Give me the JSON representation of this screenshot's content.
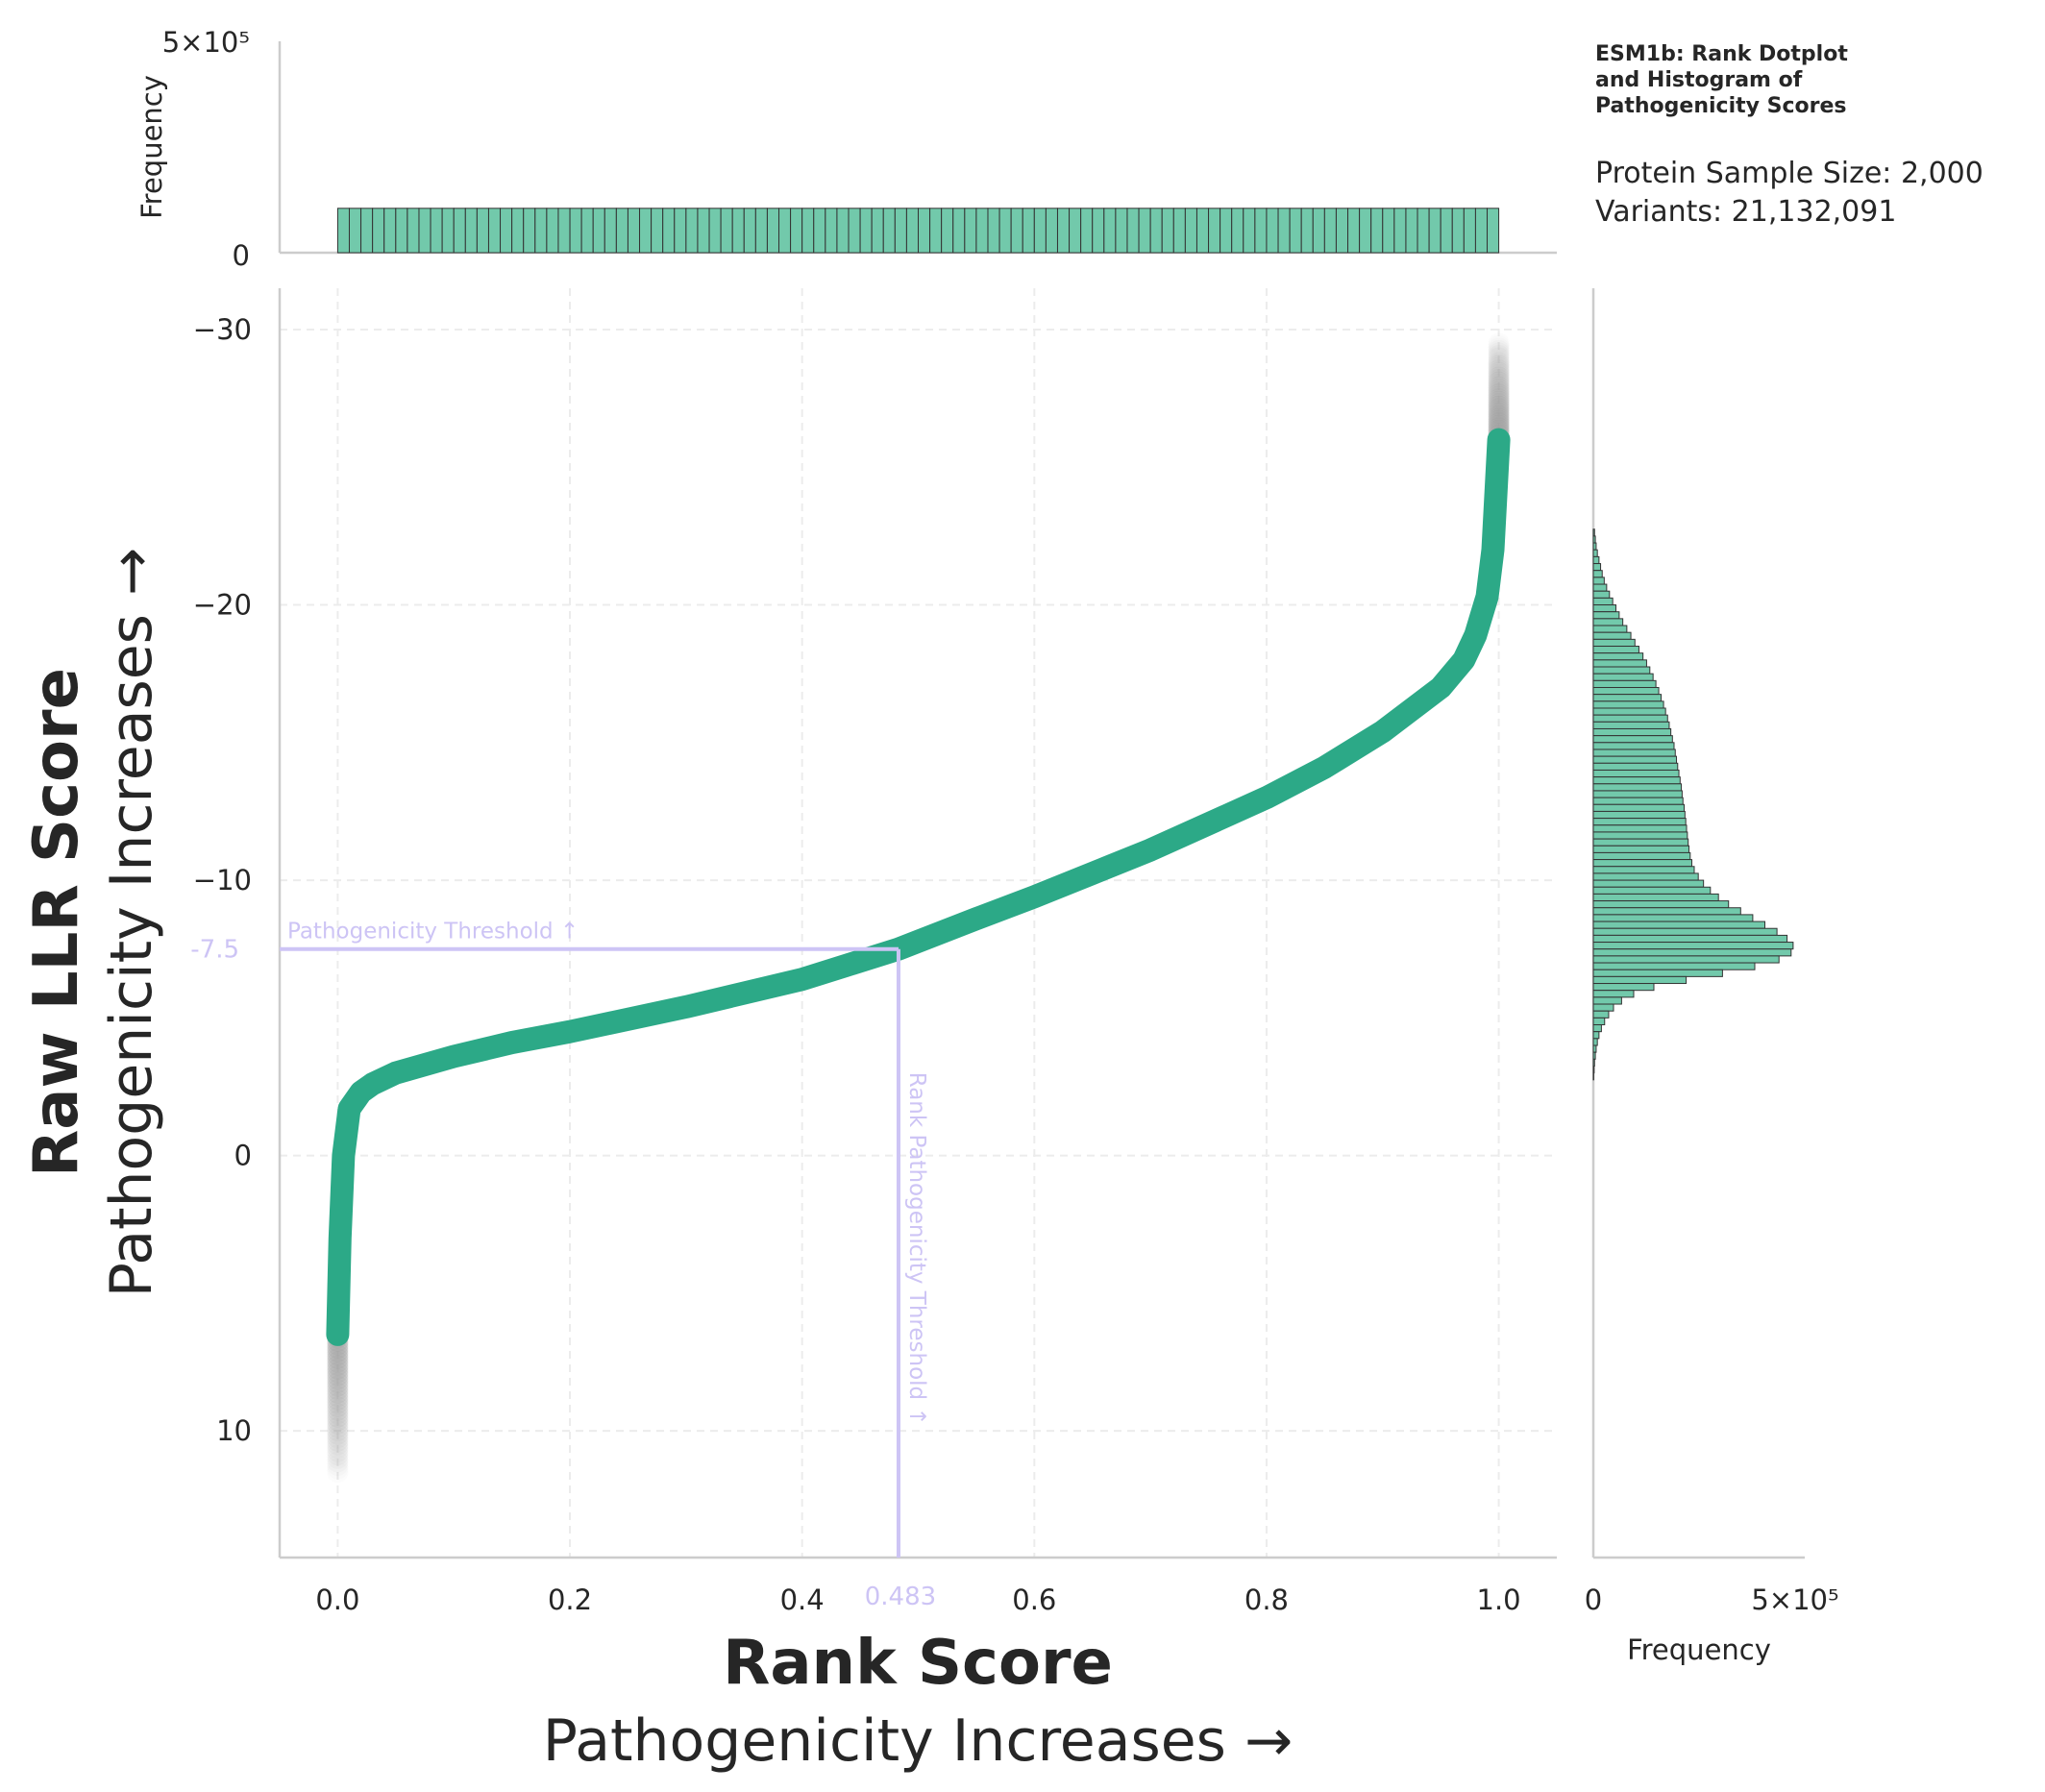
{
  "chart_data": [
    {
      "name": "rank-dotplot",
      "type": "scatter",
      "xlabel": "Rank Score",
      "xlabel_sub": "Pathogenicity Increases →",
      "ylabel": "Raw LLR Score",
      "ylabel_sub": "Pathogenicity Increases →",
      "xlim": [
        -0.05,
        1.05
      ],
      "ylim": [
        14.6,
        -31.5
      ],
      "y_inverted": true,
      "xticks": [
        0.0,
        0.2,
        0.4,
        0.6,
        0.8,
        1.0
      ],
      "xtick_labels": [
        "0.0",
        "0.2",
        "0.4",
        "0.6",
        "0.8",
        "1.0"
      ],
      "yticks": [
        -30,
        -20,
        -10,
        0,
        10
      ],
      "ytick_labels": [
        "−30",
        "−20",
        "−10",
        "0",
        "10"
      ],
      "grid": true,
      "color": "#2ca987",
      "curve": {
        "x": [
          0.0,
          0.002,
          0.005,
          0.01,
          0.02,
          0.03,
          0.05,
          0.1,
          0.15,
          0.2,
          0.3,
          0.4,
          0.483,
          0.55,
          0.6,
          0.7,
          0.8,
          0.85,
          0.9,
          0.95,
          0.97,
          0.98,
          0.99,
          0.995,
          1.0
        ],
        "y": [
          6.5,
          3.0,
          0.0,
          -1.7,
          -2.3,
          -2.6,
          -3.0,
          -3.6,
          -4.1,
          -4.5,
          -5.4,
          -6.4,
          -7.5,
          -8.6,
          -9.4,
          -11.1,
          -13.0,
          -14.1,
          -15.4,
          -17.0,
          -18.0,
          -18.9,
          -20.3,
          -22.0,
          -26.0
        ]
      },
      "tails": {
        "low": {
          "x": 0.0,
          "y_from": 6.5,
          "y_to": 11.5
        },
        "high": {
          "x": 1.0,
          "y_from": -26.0,
          "y_to": -29.5
        }
      },
      "thresholds": {
        "llr_value": -7.5,
        "llr_label": "-7.5",
        "llr_text": "Pathogenicity Threshold ↑",
        "rank_value": 0.483,
        "rank_label": "0.483",
        "rank_text": "Rank Pathogenicity Threshold ↑",
        "color": "#cdc4f5"
      }
    },
    {
      "name": "rank-histogram",
      "type": "bar",
      "ylabel": "Frequency",
      "ylim": [
        0,
        500000
      ],
      "ytick_labels": [
        "0",
        "5×10⁵"
      ],
      "bins": 100,
      "range": [
        0,
        1
      ],
      "count_per_bin": 105000,
      "color": "#72c9ab"
    },
    {
      "name": "llr-histogram",
      "type": "bar",
      "orientation": "horizontal",
      "xlabel": "Frequency",
      "xlim": [
        0,
        500000
      ],
      "xtick_labels": [
        "0",
        "5×10⁵"
      ],
      "bin_width": 0.25,
      "y_start": -22.75,
      "counts": [
        3000,
        5000,
        7000,
        10000,
        14000,
        18000,
        22000,
        27000,
        33000,
        40000,
        48000,
        56000,
        64000,
        73000,
        83000,
        93000,
        103000,
        113000,
        123000,
        132000,
        140000,
        148000,
        155000,
        162000,
        168000,
        174000,
        179000,
        184000,
        188000,
        192000,
        196000,
        200000,
        203000,
        206000,
        209000,
        212000,
        215000,
        218000,
        220000,
        222000,
        225000,
        227000,
        229000,
        231000,
        233000,
        235000,
        237000,
        240000,
        244000,
        250000,
        260000,
        273000,
        290000,
        310000,
        335000,
        365000,
        395000,
        425000,
        455000,
        480000,
        495000,
        490000,
        460000,
        400000,
        320000,
        230000,
        150000,
        100000,
        70000,
        50000,
        38000,
        28000,
        20000,
        14000,
        10000,
        7000,
        5000,
        3000,
        2000,
        1000
      ],
      "color": "#72c9ab"
    }
  ],
  "title": "ESM1b: Rank Dotplot and Histogram of Pathogenicity Scores",
  "title_lines": [
    "ESM1b: Rank Dotplot",
    "and Histogram of",
    "Pathogenicity Scores"
  ],
  "info": {
    "protein_sample": "Protein Sample Size: 2,000",
    "variants": "Variants: 21,132,091"
  }
}
